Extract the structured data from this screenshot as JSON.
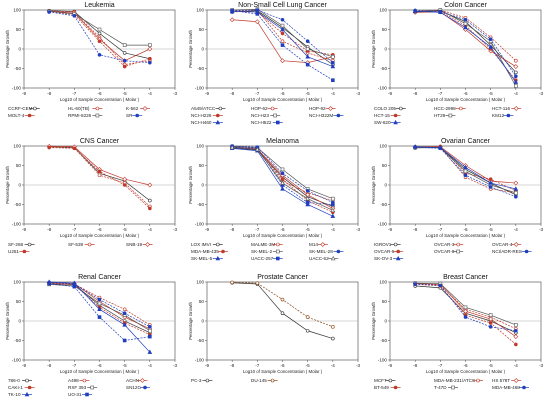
{
  "figure": {
    "x_axis_label": "Log10 of Sample Concentration ( Molar )",
    "y_axis_label": "Percentage Growth"
  },
  "chart_data": [
    {
      "type": "line",
      "title": "Leukemia",
      "x": [
        -8,
        -7,
        -6,
        -5,
        -4
      ],
      "xlim": [
        -9,
        -3
      ],
      "ylim": [
        -100,
        100
      ],
      "xlabel": "Log10 of Sample Concentration ( Molar )",
      "ylabel": "Percentage Growth",
      "series": [
        {
          "name": "CCRF-CEM",
          "color": "#333333",
          "marker": "circle-open",
          "values": [
            98,
            96,
            40,
            -10,
            -25
          ]
        },
        {
          "name": "HL-60(TB)",
          "color": "#c0392b",
          "marker": "circle-open",
          "values": [
            98,
            95,
            30,
            -40,
            -30
          ]
        },
        {
          "name": "K-562",
          "color": "#c0392b",
          "marker": "diamond-open",
          "values": [
            97,
            92,
            25,
            -30,
            0
          ]
        },
        {
          "name": "MOLT-4",
          "color": "#c0392b",
          "marker": "circle-filled",
          "values": [
            96,
            88,
            20,
            -45,
            -25
          ]
        },
        {
          "name": "RPMI-8226",
          "color": "#555555",
          "marker": "square-open",
          "values": [
            97,
            90,
            50,
            10,
            10
          ]
        },
        {
          "name": "SR",
          "color": "#1f3fbf",
          "marker": "circle-filled",
          "values": [
            95,
            85,
            -15,
            -30,
            -35
          ]
        }
      ]
    },
    {
      "type": "line",
      "title": "Non-Small Cell Lung Cancer",
      "x": [
        -8,
        -7,
        -6,
        -5,
        -4
      ],
      "xlim": [
        -9,
        -3
      ],
      "ylim": [
        -100,
        100
      ],
      "xlabel": "Log10 of Sample Concentration ( Molar )",
      "ylabel": "Percentage Growth",
      "series": [
        {
          "name": "A549/ATCC",
          "color": "#333333",
          "marker": "circle-open",
          "values": [
            95,
            98,
            55,
            5,
            -40
          ]
        },
        {
          "name": "HOP-62",
          "color": "#c0392b",
          "marker": "circle-open",
          "values": [
            100,
            100,
            20,
            -10,
            -30
          ]
        },
        {
          "name": "HOP-92",
          "color": "#c0392b",
          "marker": "diamond-open",
          "values": [
            75,
            70,
            -30,
            -35,
            -20
          ]
        },
        {
          "name": "NCI-H226",
          "color": "#c0392b",
          "marker": "circle-filled",
          "values": [
            98,
            95,
            40,
            -5,
            -15
          ]
        },
        {
          "name": "NCI-H23",
          "color": "#555555",
          "marker": "square-open",
          "values": [
            100,
            102,
            60,
            0,
            -20
          ]
        },
        {
          "name": "NCI-H322M",
          "color": "#1f3fbf",
          "marker": "circle-filled",
          "values": [
            97,
            100,
            75,
            20,
            -35
          ]
        },
        {
          "name": "NCI-H460",
          "color": "#1f3fbf",
          "marker": "triangle-filled",
          "values": [
            96,
            95,
            50,
            -20,
            -45
          ]
        },
        {
          "name": "NCI-H522",
          "color": "#1f3fbf",
          "marker": "square-filled",
          "values": [
            98,
            90,
            10,
            -40,
            -80
          ]
        }
      ]
    },
    {
      "type": "line",
      "title": "Colon Cancer",
      "x": [
        -8,
        -7,
        -6,
        -5,
        -4
      ],
      "xlim": [
        -9,
        -3
      ],
      "ylim": [
        -100,
        100
      ],
      "xlabel": "Log10 of Sample Concentration ( Molar )",
      "ylabel": "Percentage Growth",
      "series": [
        {
          "name": "COLO 205",
          "color": "#333333",
          "marker": "circle-open",
          "values": [
            95,
            98,
            70,
            10,
            -60
          ]
        },
        {
          "name": "HCC-2998",
          "color": "#c0392b",
          "marker": "circle-open",
          "values": [
            97,
            100,
            80,
            30,
            -30
          ]
        },
        {
          "name": "HCT-116",
          "color": "#c0392b",
          "marker": "diamond-open",
          "values": [
            94,
            95,
            50,
            -5,
            -45
          ]
        },
        {
          "name": "HCT-15",
          "color": "#c0392b",
          "marker": "circle-filled",
          "values": [
            98,
            97,
            60,
            0,
            -80
          ]
        },
        {
          "name": "HT29",
          "color": "#555555",
          "marker": "square-open",
          "values": [
            96,
            100,
            65,
            20,
            -95
          ]
        },
        {
          "name": "KM12",
          "color": "#1f3fbf",
          "marker": "circle-filled",
          "values": [
            99,
            96,
            75,
            25,
            -70
          ]
        },
        {
          "name": "SW-620",
          "color": "#1f3fbf",
          "marker": "triangle-filled",
          "values": [
            97,
            94,
            55,
            5,
            -85
          ]
        }
      ]
    },
    {
      "type": "line",
      "title": "CNS Cancer",
      "x": [
        -8,
        -7,
        -6,
        -5,
        -4
      ],
      "xlim": [
        -9,
        -3
      ],
      "ylim": [
        -100,
        100
      ],
      "xlabel": "Log10 of Sample Concentration ( Molar )",
      "ylabel": "Percentage Growth",
      "series": [
        {
          "name": "SF-268",
          "color": "#333333",
          "marker": "circle-open",
          "values": [
            98,
            96,
            30,
            10,
            -40
          ]
        },
        {
          "name": "SF-539",
          "color": "#c0392b",
          "marker": "circle-open",
          "values": [
            97,
            95,
            25,
            5,
            -55
          ]
        },
        {
          "name": "SNB-19",
          "color": "#c0392b",
          "marker": "diamond-open",
          "values": [
            99,
            98,
            40,
            15,
            0
          ]
        },
        {
          "name": "U251",
          "color": "#c0392b",
          "marker": "circle-filled",
          "values": [
            96,
            94,
            35,
            0,
            -60
          ]
        }
      ]
    },
    {
      "type": "line",
      "title": "Melanoma",
      "x": [
        -8,
        -7,
        -6,
        -5,
        -4
      ],
      "xlim": [
        -9,
        -3
      ],
      "ylim": [
        -100,
        100
      ],
      "xlabel": "Log10 of Sample Concentration ( Molar )",
      "ylabel": "Percentage Growth",
      "series": [
        {
          "name": "LOX IMVI",
          "color": "#333333",
          "marker": "circle-open",
          "values": [
            95,
            90,
            20,
            -30,
            -55
          ]
        },
        {
          "name": "MALME-3M",
          "color": "#c0392b",
          "marker": "circle-open",
          "values": [
            96,
            95,
            10,
            -20,
            -40
          ]
        },
        {
          "name": "M14",
          "color": "#c0392b",
          "marker": "diamond-open",
          "values": [
            98,
            92,
            25,
            -25,
            -60
          ]
        },
        {
          "name": "MDA-MB-435",
          "color": "#c0392b",
          "marker": "circle-filled",
          "values": [
            97,
            93,
            15,
            -40,
            -70
          ]
        },
        {
          "name": "SK-MEL-2",
          "color": "#555555",
          "marker": "square-open",
          "values": [
            99,
            96,
            40,
            -10,
            -35
          ]
        },
        {
          "name": "SK-MEL-28",
          "color": "#1f3fbf",
          "marker": "circle-filled",
          "values": [
            100,
            97,
            30,
            -15,
            -45
          ]
        },
        {
          "name": "SK-MEL-5",
          "color": "#1f3fbf",
          "marker": "triangle-filled",
          "values": [
            94,
            88,
            -10,
            -50,
            -80
          ]
        },
        {
          "name": "UACC-257",
          "color": "#1f3fbf",
          "marker": "square-filled",
          "values": [
            97,
            94,
            0,
            -45,
            -50
          ]
        },
        {
          "name": "UACC-62",
          "color": "#555555",
          "marker": "triangle-open",
          "values": [
            96,
            91,
            5,
            -35,
            -65
          ]
        }
      ]
    },
    {
      "type": "line",
      "title": "Ovarian Cancer",
      "x": [
        -8,
        -7,
        -6,
        -5,
        -4
      ],
      "xlim": [
        -9,
        -3
      ],
      "ylim": [
        -100,
        100
      ],
      "xlabel": "Log10 of Sample Concentration ( Molar )",
      "ylabel": "Percentage Growth",
      "series": [
        {
          "name": "IGROV1",
          "color": "#333333",
          "marker": "circle-open",
          "values": [
            95,
            96,
            40,
            5,
            -25
          ]
        },
        {
          "name": "OVCAR-3",
          "color": "#c0392b",
          "marker": "circle-open",
          "values": [
            96,
            97,
            20,
            -10,
            -20
          ]
        },
        {
          "name": "OVCAR-4",
          "color": "#c0392b",
          "marker": "diamond-open",
          "values": [
            97,
            98,
            50,
            10,
            5
          ]
        },
        {
          "name": "OVCAR-5",
          "color": "#c0392b",
          "marker": "circle-filled",
          "values": [
            98,
            99,
            30,
            15,
            -15
          ]
        },
        {
          "name": "OVCAR-8",
          "color": "#555555",
          "marker": "square-open",
          "values": [
            96,
            95,
            35,
            0,
            -20
          ]
        },
        {
          "name": "NCI/ADR-RES",
          "color": "#1f3fbf",
          "marker": "circle-filled",
          "values": [
            97,
            94,
            25,
            -5,
            -30
          ]
        },
        {
          "name": "SK-OV-3",
          "color": "#1f3fbf",
          "marker": "triangle-filled",
          "values": [
            98,
            96,
            45,
            5,
            -10
          ]
        }
      ]
    },
    {
      "type": "line",
      "title": "Renal Cancer",
      "x": [
        -8,
        -7,
        -6,
        -5,
        -4
      ],
      "xlim": [
        -9,
        -3
      ],
      "ylim": [
        -100,
        100
      ],
      "xlabel": "Log10 of Sample Concentration ( Molar )",
      "ylabel": "Percentage Growth",
      "series": [
        {
          "name": "786-0",
          "color": "#333333",
          "marker": "circle-open",
          "values": [
            95,
            94,
            40,
            0,
            -30
          ]
        },
        {
          "name": "A498",
          "color": "#c0392b",
          "marker": "circle-open",
          "values": [
            97,
            95,
            60,
            30,
            -10
          ]
        },
        {
          "name": "ACHN",
          "color": "#c0392b",
          "marker": "diamond-open",
          "values": [
            98,
            96,
            50,
            10,
            -20
          ]
        },
        {
          "name": "CAKI-1",
          "color": "#c0392b",
          "marker": "circle-filled",
          "values": [
            96,
            93,
            35,
            -5,
            -35
          ]
        },
        {
          "name": "RXF 393",
          "color": "#555555",
          "marker": "square-open",
          "values": [
            94,
            90,
            45,
            15,
            -25
          ]
        },
        {
          "name": "SN12C",
          "color": "#1f3fbf",
          "marker": "circle-filled",
          "values": [
            99,
            95,
            55,
            20,
            -15
          ]
        },
        {
          "name": "TK-10",
          "color": "#1f3fbf",
          "marker": "triangle-filled",
          "values": [
            100,
            97,
            30,
            -10,
            -80
          ]
        },
        {
          "name": "UO-31",
          "color": "#1f3fbf",
          "marker": "square-filled",
          "values": [
            96,
            88,
            10,
            -50,
            -40
          ]
        }
      ]
    },
    {
      "type": "line",
      "title": "Prostate Cancer",
      "x": [
        -8,
        -7,
        -6,
        -5,
        -4
      ],
      "xlim": [
        -9,
        -3
      ],
      "ylim": [
        -100,
        100
      ],
      "xlabel": "Log10 of Sample Concentration ( Molar )",
      "ylabel": "Percentage Growth",
      "series": [
        {
          "name": "PC-3",
          "color": "#333333",
          "marker": "circle-open",
          "values": [
            98,
            95,
            20,
            -25,
            -45
          ]
        },
        {
          "name": "DU-145",
          "color": "#8b4513",
          "marker": "circle-open",
          "values": [
            99,
            97,
            55,
            10,
            -15
          ]
        }
      ]
    },
    {
      "type": "line",
      "title": "Breast Cancer",
      "x": [
        -8,
        -7,
        -6,
        -5,
        -4
      ],
      "xlim": [
        -9,
        -3
      ],
      "ylim": [
        -100,
        100
      ],
      "xlabel": "Log10 of Sample Concentration ( Molar )",
      "ylabel": "Percentage Growth",
      "series": [
        {
          "name": "MCF7",
          "color": "#333333",
          "marker": "circle-open",
          "values": [
            90,
            85,
            20,
            0,
            -30
          ]
        },
        {
          "name": "MDA-MB-231/ATCC",
          "color": "#c0392b",
          "marker": "circle-open",
          "values": [
            95,
            92,
            30,
            10,
            -20
          ]
        },
        {
          "name": "HS 578T",
          "color": "#c0392b",
          "marker": "diamond-open",
          "values": [
            96,
            94,
            25,
            5,
            -40
          ]
        },
        {
          "name": "BT-549",
          "color": "#c0392b",
          "marker": "circle-filled",
          "values": [
            94,
            90,
            15,
            -5,
            -60
          ]
        },
        {
          "name": "T-47D",
          "color": "#555555",
          "marker": "square-open",
          "values": [
            97,
            96,
            35,
            15,
            -10
          ]
        },
        {
          "name": "MDA-MB-468",
          "color": "#1f3fbf",
          "marker": "circle-filled",
          "values": [
            95,
            91,
            10,
            -15,
            -25
          ]
        }
      ]
    }
  ]
}
